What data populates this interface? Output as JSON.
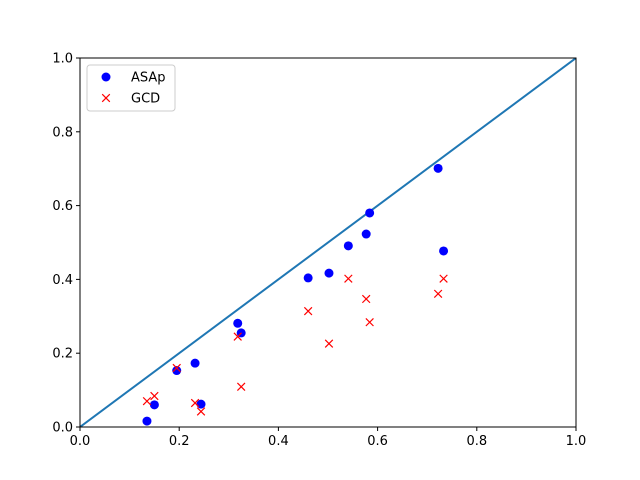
{
  "chart_data": {
    "type": "scatter",
    "title": "",
    "xlabel": "",
    "ylabel": "",
    "xlim": [
      0.0,
      1.0
    ],
    "ylim": [
      0.0,
      1.0
    ],
    "xticks": [
      "0.0",
      "0.2",
      "0.4",
      "0.6",
      "0.8",
      "1.0"
    ],
    "yticks": [
      "0.0",
      "0.2",
      "0.4",
      "0.6",
      "0.8",
      "1.0"
    ],
    "grid": false,
    "legend_position": "top-left",
    "reference_line": {
      "x": [
        0.0,
        1.0
      ],
      "y": [
        0.0,
        1.0
      ],
      "color": "#1f77b4"
    },
    "series": [
      {
        "name": "ASAp",
        "marker": "circle",
        "color": "#0000ff",
        "x": [
          0.135,
          0.15,
          0.195,
          0.232,
          0.244,
          0.318,
          0.325,
          0.46,
          0.502,
          0.541,
          0.577,
          0.584,
          0.722,
          0.733
        ],
        "y": [
          0.016,
          0.06,
          0.153,
          0.173,
          0.062,
          0.281,
          0.255,
          0.404,
          0.417,
          0.491,
          0.523,
          0.58,
          0.701,
          0.477
        ]
      },
      {
        "name": "GCD",
        "marker": "x",
        "color": "#ff0000",
        "x": [
          0.135,
          0.15,
          0.195,
          0.232,
          0.244,
          0.318,
          0.325,
          0.46,
          0.502,
          0.541,
          0.577,
          0.584,
          0.722,
          0.733
        ],
        "y": [
          0.07,
          0.084,
          0.16,
          0.065,
          0.042,
          0.245,
          0.109,
          0.314,
          0.226,
          0.402,
          0.347,
          0.284,
          0.361,
          0.402
        ]
      }
    ]
  }
}
